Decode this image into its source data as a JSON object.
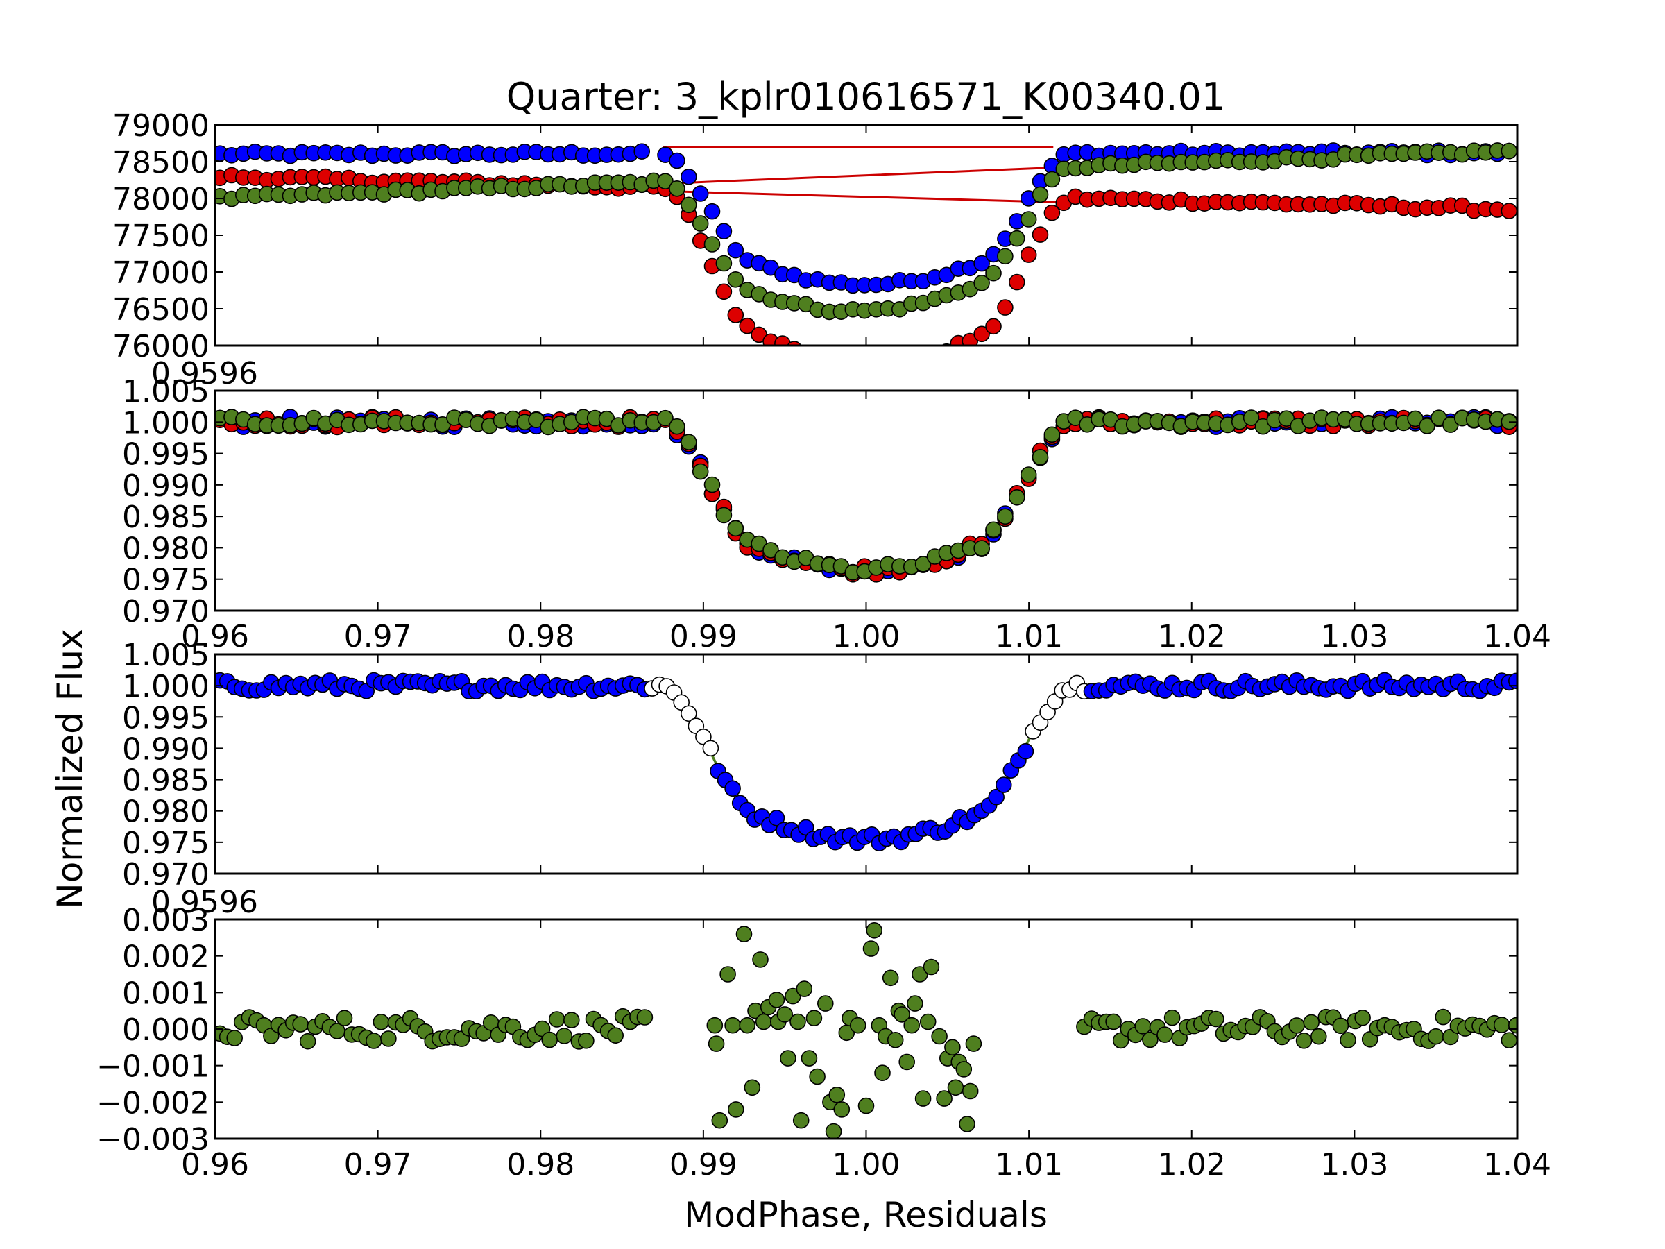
{
  "title": "Quarter: 3_kplr010616571_K00340.01",
  "ylabel": "Normalized Flux",
  "xlabel": "ModPhase, Residuals",
  "colors": {
    "blue": "#0000ff",
    "red": "#dd0000",
    "green": "#4f7f1f",
    "open": "#ffffff",
    "fit_line_red": "#cc0000",
    "model_line_green": "#4f7f1f"
  },
  "chart_data": [
    {
      "type": "scatter",
      "panel": "raw-flux",
      "xlim": [
        0.96,
        1.04
      ],
      "ylim": [
        76000,
        79000
      ],
      "yticks": [
        76000,
        76500,
        77000,
        77500,
        78000,
        78500,
        79000
      ],
      "ytick_labels": [
        "76000",
        "76500",
        "77000",
        "77500",
        "78000",
        "78500",
        "79000"
      ],
      "xtick_labels_visible": false,
      "series": [
        {
          "color": "blue",
          "baseline_start": 78600,
          "baseline_end": 78620,
          "depth": 1780,
          "note_shape": "transit"
        },
        {
          "color": "red",
          "baseline_start": 78300,
          "baseline_end": 77850,
          "depth": 2300,
          "note_shape": "transit"
        },
        {
          "color": "green",
          "baseline_start": 78000,
          "baseline_end": 78650,
          "depth": 1850,
          "note_shape": "transit"
        }
      ],
      "fit_lines": [
        {
          "x": [
            0.9605,
            0.9875,
            1.0115,
            1.04
          ],
          "y": [
            78300,
            78100,
            77950,
            77850
          ]
        },
        {
          "x": [
            0.9605,
            0.9875,
            1.0115,
            1.04
          ],
          "y": [
            78000,
            78200,
            78420,
            78650
          ]
        },
        {
          "x": [
            0.9875,
            1.0115
          ],
          "y": [
            78700,
            78700
          ]
        }
      ]
    },
    {
      "type": "scatter",
      "panel": "detrended-flux",
      "xlim": [
        0.96,
        1.04
      ],
      "ylim": [
        0.97,
        1.005
      ],
      "yticks": [
        0.97,
        0.975,
        0.98,
        0.985,
        0.99,
        0.995,
        1.0,
        1.005
      ],
      "ytick_labels": [
        "0.970",
        "0.975",
        "0.980",
        "0.985",
        "0.990",
        "0.995",
        "1.000",
        "1.005"
      ],
      "xticks": [
        0.96,
        0.97,
        0.98,
        0.99,
        1.0,
        1.01,
        1.02,
        1.03,
        1.04
      ],
      "xtick_labels": [
        "0.96",
        "0.97",
        "0.98",
        "0.99",
        "1.00",
        "1.01",
        "1.02",
        "1.03",
        "1.04"
      ],
      "offset_text": "0.9596",
      "transit": {
        "ingress_start": 0.9873,
        "ingress_end": 0.9935,
        "egress_start": 1.0065,
        "egress_end": 1.0128,
        "depth": 0.0235
      },
      "series": [
        {
          "color": "blue"
        },
        {
          "color": "red"
        },
        {
          "color": "green"
        }
      ]
    },
    {
      "type": "scatter",
      "panel": "model-fit",
      "xlim": [
        0.96,
        1.04
      ],
      "ylim": [
        0.97,
        1.005
      ],
      "yticks": [
        0.97,
        0.975,
        0.98,
        0.985,
        0.99,
        0.995,
        1.0,
        1.005
      ],
      "ytick_labels": [
        "0.970",
        "0.975",
        "0.980",
        "0.985",
        "0.990",
        "0.995",
        "1.000",
        "1.005"
      ],
      "xtick_labels_visible": false,
      "transit": {
        "ingress_start": 0.9873,
        "ingress_end": 0.9935,
        "egress_start": 1.0065,
        "egress_end": 1.0128,
        "depth": 0.0245
      },
      "series": [
        {
          "color": "blue",
          "region": "out-of-transit-and-bottom"
        },
        {
          "color": "open",
          "region": "ingress-egress"
        }
      ],
      "model_line": {
        "color": "model_line_green"
      }
    },
    {
      "type": "scatter",
      "panel": "residuals",
      "xlim": [
        0.96,
        1.04
      ],
      "ylim": [
        -0.003,
        0.003
      ],
      "yticks": [
        -0.003,
        -0.002,
        -0.001,
        0.0,
        0.001,
        0.002,
        0.003
      ],
      "ytick_labels": [
        "−0.003",
        "−0.002",
        "−0.001",
        "0.000",
        "0.001",
        "0.002",
        "0.003"
      ],
      "xticks": [
        0.96,
        0.97,
        0.98,
        0.99,
        1.0,
        1.01,
        1.02,
        1.03,
        1.04
      ],
      "xtick_labels": [
        "0.96",
        "0.97",
        "0.98",
        "0.99",
        "1.00",
        "1.01",
        "1.02",
        "1.03",
        "1.04"
      ],
      "offset_text": "0.9596",
      "series": [
        {
          "color": "green",
          "in_transit_points": [
            [
              0.9907,
              0.0001
            ],
            [
              0.9908,
              -0.0004
            ],
            [
              0.991,
              -0.0025
            ],
            [
              0.9915,
              0.0015
            ],
            [
              0.9918,
              0.0001
            ],
            [
              0.992,
              -0.0022
            ],
            [
              0.9925,
              0.0026
            ],
            [
              0.9927,
              0.0001
            ],
            [
              0.993,
              -0.0016
            ],
            [
              0.9932,
              0.0005
            ],
            [
              0.9935,
              0.0019
            ],
            [
              0.9937,
              0.0002
            ],
            [
              0.994,
              0.0006
            ],
            [
              0.9945,
              0.0008
            ],
            [
              0.9946,
              0.0002
            ],
            [
              0.995,
              0.0004
            ],
            [
              0.9952,
              -0.0008
            ],
            [
              0.9955,
              0.0009
            ],
            [
              0.9958,
              0.0002
            ],
            [
              0.996,
              -0.0025
            ],
            [
              0.9962,
              0.0011
            ],
            [
              0.9965,
              -0.0008
            ],
            [
              0.9968,
              0.0003
            ],
            [
              0.997,
              -0.0013
            ],
            [
              0.9975,
              0.0007
            ],
            [
              0.9978,
              -0.002
            ],
            [
              0.998,
              -0.0028
            ],
            [
              0.9982,
              -0.0018
            ],
            [
              0.9985,
              -0.0022
            ],
            [
              0.9988,
              -0.0001
            ],
            [
              0.999,
              0.0003
            ],
            [
              0.9995,
              0.0001
            ],
            [
              1.0,
              -0.0021
            ],
            [
              1.0003,
              0.0022
            ],
            [
              1.0005,
              0.0027
            ],
            [
              1.0008,
              0.0001
            ],
            [
              1.001,
              -0.0012
            ],
            [
              1.0012,
              -0.0002
            ],
            [
              1.0015,
              0.0014
            ],
            [
              1.0018,
              -0.0003
            ],
            [
              1.002,
              0.0005
            ],
            [
              1.0022,
              0.0004
            ],
            [
              1.0025,
              -0.0009
            ],
            [
              1.0028,
              0.0001
            ],
            [
              1.003,
              0.0007
            ],
            [
              1.0033,
              0.0015
            ],
            [
              1.0035,
              -0.0019
            ],
            [
              1.0038,
              0.0002
            ],
            [
              1.004,
              0.0017
            ],
            [
              1.0045,
              -0.0002
            ],
            [
              1.0048,
              -0.0019
            ],
            [
              1.005,
              -0.0008
            ],
            [
              1.0053,
              -0.0005
            ],
            [
              1.0055,
              -0.0016
            ],
            [
              1.0057,
              -0.0009
            ],
            [
              1.006,
              -0.0011
            ],
            [
              1.0062,
              -0.0026
            ],
            [
              1.0064,
              -0.0017
            ],
            [
              1.0066,
              -0.0004
            ]
          ]
        }
      ]
    }
  ]
}
